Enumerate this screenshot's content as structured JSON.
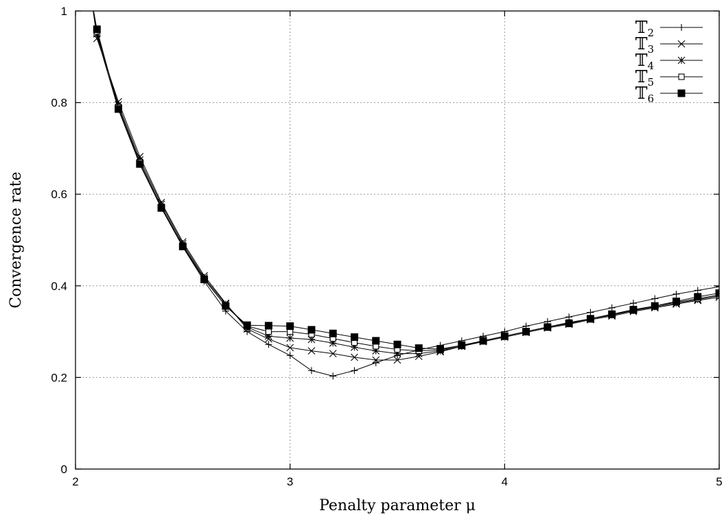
{
  "chart_data": {
    "type": "line",
    "title": "",
    "xlabel": "Penalty parameter μ",
    "ylabel": "Convergence rate",
    "xlim": [
      2,
      5
    ],
    "ylim": [
      0,
      1
    ],
    "xticks": [
      "2",
      "3",
      "4",
      "5"
    ],
    "yticks": [
      "0",
      "0.2",
      "0.4",
      "0.6",
      "0.8",
      "1"
    ],
    "grid": true,
    "legend_position": "top-right",
    "x": [
      2.1,
      2.2,
      2.3,
      2.4,
      2.5,
      2.6,
      2.7,
      2.8,
      2.9,
      3.0,
      3.1,
      3.2,
      3.3,
      3.4,
      3.5,
      3.6,
      3.7,
      3.8,
      3.9,
      4.0,
      4.1,
      4.2,
      4.3,
      4.4,
      4.5,
      4.6,
      4.7,
      4.8,
      4.9,
      5.0
    ],
    "series": [
      {
        "name": "T2",
        "label_main": "𝕋",
        "label_sub": "2",
        "marker": "plus",
        "values": [
          0.945,
          0.785,
          0.665,
          0.57,
          0.485,
          0.41,
          0.345,
          0.3,
          0.272,
          0.248,
          0.215,
          0.203,
          0.215,
          0.232,
          0.248,
          0.26,
          0.27,
          0.28,
          0.29,
          0.3,
          0.312,
          0.322,
          0.332,
          0.342,
          0.352,
          0.362,
          0.372,
          0.382,
          0.39,
          0.398
        ]
      },
      {
        "name": "T3",
        "label_main": "𝕋",
        "label_sub": "3",
        "marker": "cross",
        "values": [
          0.94,
          0.802,
          0.682,
          0.582,
          0.496,
          0.422,
          0.362,
          0.306,
          0.284,
          0.265,
          0.258,
          0.252,
          0.244,
          0.238,
          0.238,
          0.246,
          0.256,
          0.268,
          0.278,
          0.288,
          0.298,
          0.308,
          0.316,
          0.326,
          0.334,
          0.344,
          0.352,
          0.36,
          0.368,
          0.375
        ]
      },
      {
        "name": "T4",
        "label_main": "𝕋",
        "label_sub": "4",
        "marker": "star",
        "values": [
          0.95,
          0.795,
          0.675,
          0.578,
          0.492,
          0.418,
          0.36,
          0.31,
          0.29,
          0.286,
          0.283,
          0.275,
          0.266,
          0.258,
          0.252,
          0.252,
          0.258,
          0.268,
          0.28,
          0.29,
          0.3,
          0.31,
          0.318,
          0.328,
          0.336,
          0.346,
          0.354,
          0.362,
          0.37,
          0.378
        ]
      },
      {
        "name": "T5",
        "label_main": "𝕋",
        "label_sub": "5",
        "marker": "square-open",
        "values": [
          0.955,
          0.79,
          0.67,
          0.573,
          0.488,
          0.415,
          0.356,
          0.312,
          0.3,
          0.3,
          0.294,
          0.285,
          0.276,
          0.268,
          0.261,
          0.258,
          0.26,
          0.27,
          0.28,
          0.29,
          0.3,
          0.31,
          0.32,
          0.328,
          0.338,
          0.346,
          0.356,
          0.364,
          0.372,
          0.38
        ]
      },
      {
        "name": "T6",
        "label_main": "𝕋",
        "label_sub": "6",
        "marker": "square-filled",
        "values": [
          0.96,
          0.786,
          0.666,
          0.57,
          0.486,
          0.414,
          0.356,
          0.314,
          0.313,
          0.312,
          0.304,
          0.296,
          0.288,
          0.28,
          0.272,
          0.264,
          0.262,
          0.27,
          0.28,
          0.29,
          0.3,
          0.31,
          0.318,
          0.328,
          0.338,
          0.348,
          0.356,
          0.366,
          0.376,
          0.384
        ]
      }
    ]
  }
}
